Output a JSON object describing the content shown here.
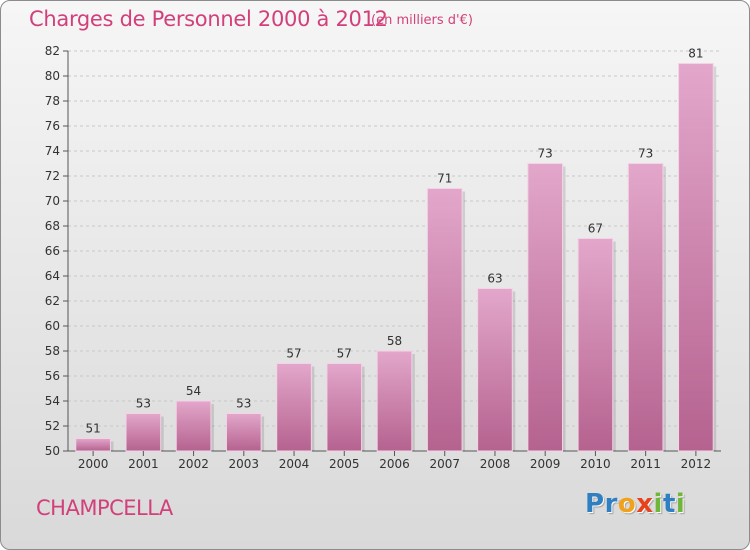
{
  "chart_data": {
    "type": "bar",
    "title": "Charges de Personnel 2000 à 2012",
    "subtitle": "(en milliers d'€)",
    "categories": [
      "2000",
      "2001",
      "2002",
      "2003",
      "2004",
      "2005",
      "2006",
      "2007",
      "2008",
      "2009",
      "2010",
      "2011",
      "2012"
    ],
    "values": [
      51,
      53,
      54,
      53,
      57,
      57,
      58,
      71,
      63,
      73,
      67,
      73,
      81
    ],
    "ylim": [
      50,
      82
    ],
    "yticks": [
      50,
      52,
      54,
      56,
      58,
      60,
      62,
      64,
      66,
      68,
      70,
      72,
      74,
      76,
      78,
      80,
      82
    ],
    "grid": true,
    "bar_color": "#c8699c",
    "bar_color_light": "#e3a7cb",
    "accent_color": "#d2407b"
  },
  "footer": {
    "town": "CHAMPCELLA",
    "logo": {
      "letters": [
        {
          "char": "P",
          "color": "#2f7fc1"
        },
        {
          "char": "r",
          "color": "#2f7fc1"
        },
        {
          "char": "o",
          "color": "#f0a21c"
        },
        {
          "char": "x",
          "color": "#e8421c"
        },
        {
          "char": "i",
          "color": "#6fb63b"
        },
        {
          "char": "t",
          "color": "#2f7fc1"
        },
        {
          "char": "i",
          "color": "#6fb63b"
        }
      ]
    }
  }
}
